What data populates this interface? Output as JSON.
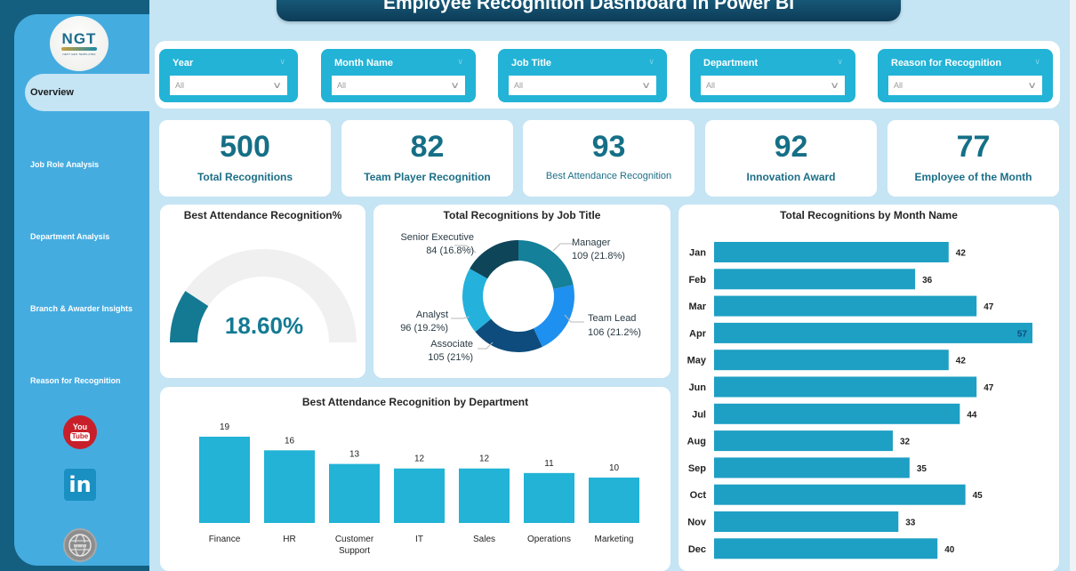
{
  "header": {
    "title": "Employee Recognition Dashboard in Power BI"
  },
  "logo": {
    "main": "NGT",
    "sub": "NEXT GEN TEMPLATES"
  },
  "sidebar": {
    "items": [
      {
        "label": "Overview",
        "active": true
      },
      {
        "label": "Job Role Analysis",
        "active": false
      },
      {
        "label": "Department Analysis",
        "active": false
      },
      {
        "label": "Branch & Awarder Insights",
        "active": false
      },
      {
        "label": "Reason for Recognition",
        "active": false
      }
    ],
    "social": [
      {
        "name": "youtube",
        "icon": "youtube-icon",
        "line1": "You",
        "line2": "Tube",
        "color": "#c8202a"
      },
      {
        "name": "linkedin",
        "icon": "linkedin-icon",
        "text": "in",
        "color": "#1a8fc1"
      },
      {
        "name": "website",
        "icon": "globe-icon",
        "text": "www",
        "color": "#8d8d8d"
      }
    ]
  },
  "filters": [
    {
      "label": "Year",
      "value": "All"
    },
    {
      "label": "Month Name",
      "value": "All"
    },
    {
      "label": "Job Title",
      "value": "All"
    },
    {
      "label": "Department",
      "value": "All"
    },
    {
      "label": "Reason for Recognition",
      "value": "All"
    }
  ],
  "kpis": [
    {
      "value": "500",
      "label": "Total Recognitions"
    },
    {
      "value": "82",
      "label": "Team Player Recognition"
    },
    {
      "value": "93",
      "label": "Best Attendance Recognition"
    },
    {
      "value": "92",
      "label": "Innovation Award"
    },
    {
      "value": "77",
      "label": "Employee of the Month"
    }
  ],
  "colors": {
    "accent": "#22b3d6",
    "kpi_text": "#156f86",
    "bar": "#22b3d6",
    "month_bar": "#1e9fc4",
    "gauge_fill": "#147a93",
    "gauge_track": "#f0f0f0",
    "title_bar": "#0c3c57"
  },
  "chart_data": [
    {
      "id": "gauge",
      "type": "gauge",
      "title": "Best Attendance Recognition%",
      "value": 18.6,
      "min": 0,
      "max": 100,
      "display": "18.60%"
    },
    {
      "id": "donut",
      "type": "pie",
      "title": "Total Recognitions by Job Title",
      "slices": [
        {
          "label": "Manager",
          "value": 109,
          "pct": "21.8%",
          "display": "109 (21.8%)",
          "color": "#14809a"
        },
        {
          "label": "Team Lead",
          "value": 106,
          "pct": "21.2%",
          "display": "106 (21.2%)",
          "color": "#1e90f0"
        },
        {
          "label": "Associate",
          "value": 105,
          "pct": "21%",
          "display": "105 (21%)",
          "color": "#0d4c7c"
        },
        {
          "label": "Analyst",
          "value": 96,
          "pct": "19.2%",
          "display": "96 (19.2%)",
          "color": "#24b1dc"
        },
        {
          "label": "Senior Executive",
          "value": 84,
          "pct": "16.8%",
          "display": "84 (16.8%)",
          "color": "#0f4559"
        }
      ]
    },
    {
      "id": "dept",
      "type": "bar",
      "title": "Best Attendance Recognition by Department",
      "categories": [
        "Finance",
        "HR",
        "Customer Support",
        "IT",
        "Sales",
        "Operations",
        "Marketing"
      ],
      "category_lines": [
        [
          "Finance"
        ],
        [
          "HR"
        ],
        [
          "Customer",
          "Support"
        ],
        [
          "IT"
        ],
        [
          "Sales"
        ],
        [
          "Operations"
        ],
        [
          "Marketing"
        ]
      ],
      "values": [
        19,
        16,
        13,
        12,
        12,
        11,
        10
      ],
      "xlabel": "",
      "ylabel": "",
      "ylim": [
        0,
        19
      ]
    },
    {
      "id": "month",
      "type": "bar",
      "orientation": "horizontal",
      "title": "Total Recognitions by Month Name",
      "categories": [
        "Jan",
        "Feb",
        "Mar",
        "Apr",
        "May",
        "Jun",
        "Jul",
        "Aug",
        "Sep",
        "Oct",
        "Nov",
        "Dec"
      ],
      "values": [
        42,
        36,
        47,
        57,
        42,
        47,
        44,
        32,
        35,
        45,
        33,
        40
      ],
      "xlabel": "",
      "ylabel": "",
      "xlim": [
        0,
        57
      ]
    }
  ]
}
